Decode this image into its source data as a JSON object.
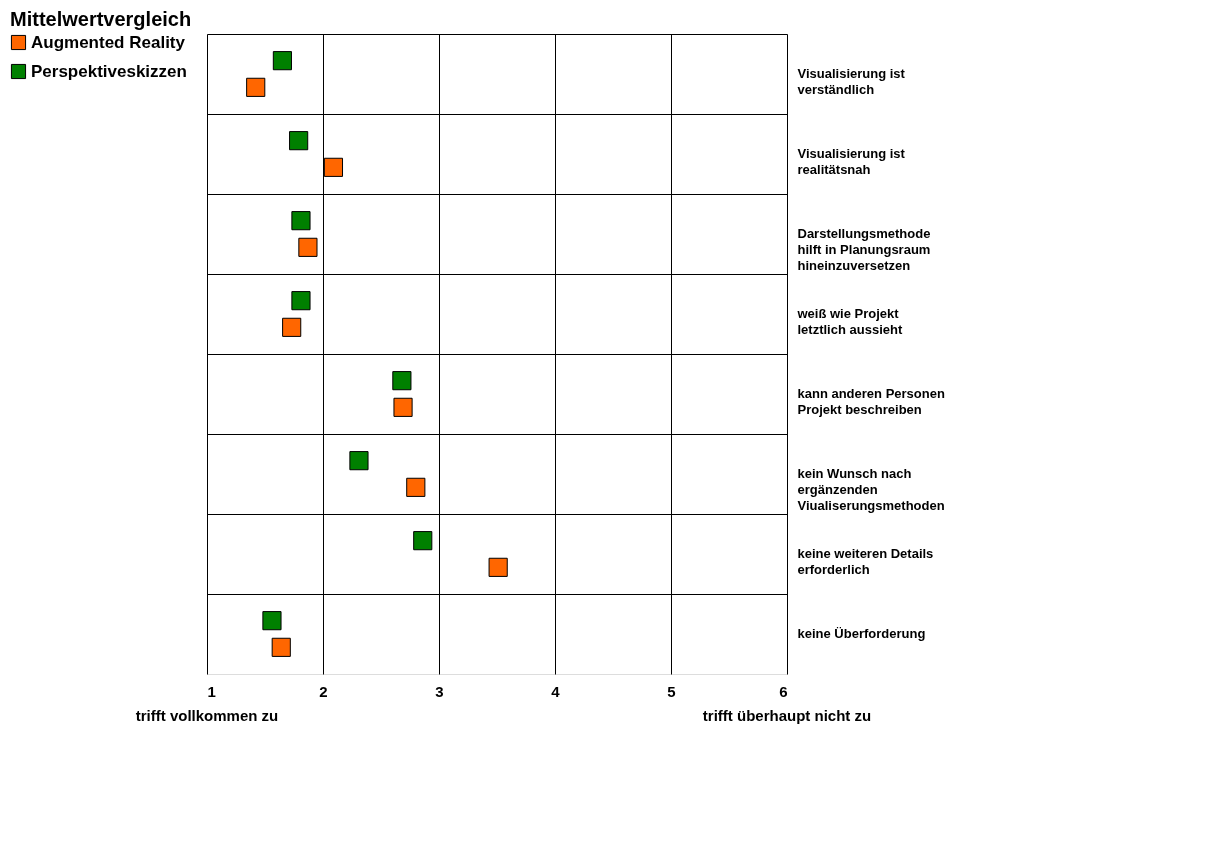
{
  "chart_data": {
    "type": "scatter",
    "title": "Mittelwertvergleich",
    "orientation": "horizontal",
    "categories": [
      "Visualisierung ist verständlich",
      "Visualisierung ist realitätsnah",
      "Darstellungsmethode hilft in Planungsraum hineinzuversetzen",
      "weiß wie Projekt letztlich aussieht",
      "kann anderen Personen Projekt beschreiben",
      "kein Wunsch nach ergänzenden Viualiserungsmethoden",
      "keine weiteren Details erforderlich",
      "keine Überforderung"
    ],
    "series": [
      {
        "name": "Augmented Reality",
        "color": "#ff6600",
        "values": [
          1.42,
          2.09,
          1.87,
          1.73,
          2.69,
          2.8,
          3.51,
          1.64
        ]
      },
      {
        "name": "Perspektiveskizzen",
        "color": "#008000",
        "values": [
          1.65,
          1.79,
          1.81,
          1.81,
          2.68,
          2.31,
          2.86,
          1.56
        ]
      }
    ],
    "xlim": [
      1,
      6
    ],
    "xticks": [
      1,
      2,
      3,
      4,
      5,
      6
    ],
    "annotations": [
      "trifft vollkommen zu",
      "trifft überhaupt nicht zu"
    ],
    "marker": "square",
    "grid": true,
    "legend": "left"
  }
}
